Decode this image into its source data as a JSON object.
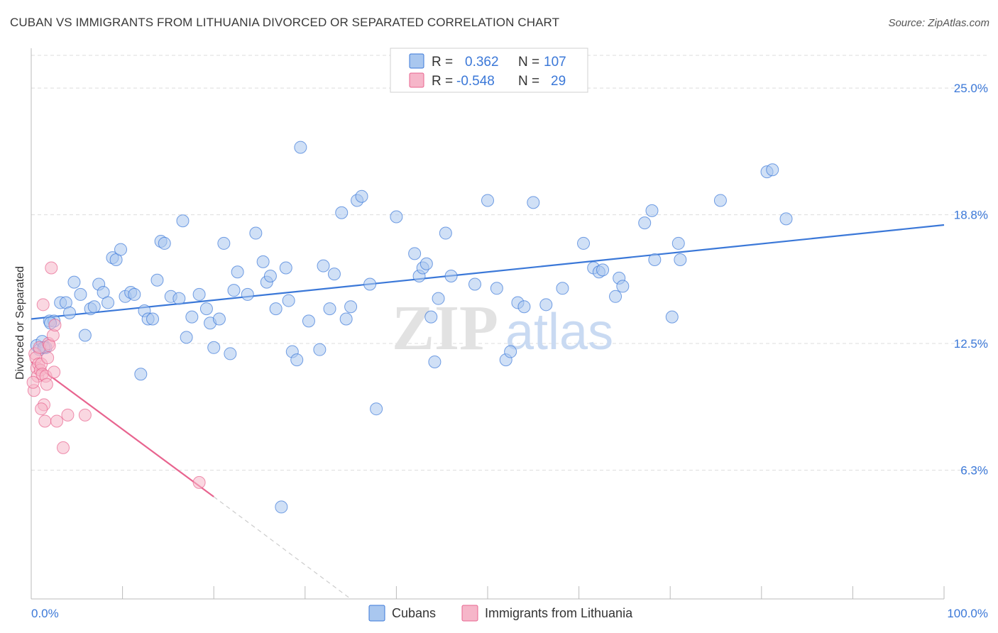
{
  "title": "CUBAN VS IMMIGRANTS FROM LITHUANIA DIVORCED OR SEPARATED CORRELATION CHART",
  "source": "Source: ZipAtlas.com",
  "watermark": {
    "zip": "ZIP",
    "atlas": "atlas"
  },
  "colors": {
    "blue": "#3b78d8",
    "blue_fill": "#a9c7ef",
    "pink": "#e8648f",
    "pink_fill": "#f6b6c9",
    "grid": "#dddddd",
    "axis": "#bbbbbb"
  },
  "legend": {
    "r_label": "R =",
    "n_label": "N =",
    "rows": [
      {
        "series": "Cubans",
        "r": "0.362",
        "n": "107",
        "color": "#3b78d8"
      },
      {
        "series": "Immigrants from Lithuania",
        "r": "-0.548",
        "n": "29",
        "color": "#e8648f"
      }
    ]
  },
  "bottom_legend": [
    "Cubans",
    "Immigrants from Lithuania"
  ],
  "chart_data": {
    "type": "scatter",
    "xlabel": "",
    "ylabel": "Divorced or Separated",
    "xlim": [
      0,
      100
    ],
    "ylim": [
      0,
      26.6
    ],
    "x_tick_labels": [
      "0.0%",
      "100.0%"
    ],
    "y_ticks": [
      6.3,
      12.5,
      18.8,
      25.0
    ],
    "y_tick_labels": [
      "6.3%",
      "12.5%",
      "18.8%",
      "25.0%"
    ],
    "grid": true,
    "series": [
      {
        "name": "Cubans",
        "trend": {
          "x": [
            0,
            100
          ],
          "y": [
            13.7,
            18.3
          ]
        },
        "points": [
          [
            0.6,
            12.4
          ],
          [
            0.9,
            12.2
          ],
          [
            1.2,
            12.6
          ],
          [
            1.6,
            12.3
          ],
          [
            2.0,
            13.6
          ],
          [
            2.5,
            13.6
          ],
          [
            3.2,
            14.5
          ],
          [
            3.8,
            14.5
          ],
          [
            4.2,
            14.0
          ],
          [
            4.7,
            15.5
          ],
          [
            5.4,
            14.9
          ],
          [
            5.9,
            12.9
          ],
          [
            6.5,
            14.2
          ],
          [
            6.9,
            14.3
          ],
          [
            7.4,
            15.4
          ],
          [
            7.9,
            15.0
          ],
          [
            8.4,
            14.5
          ],
          [
            8.9,
            16.7
          ],
          [
            9.3,
            16.6
          ],
          [
            9.8,
            17.1
          ],
          [
            10.3,
            14.8
          ],
          [
            10.9,
            15.0
          ],
          [
            11.3,
            14.9
          ],
          [
            12.0,
            11.0
          ],
          [
            12.4,
            14.1
          ],
          [
            12.8,
            13.7
          ],
          [
            13.3,
            13.7
          ],
          [
            13.8,
            15.6
          ],
          [
            14.2,
            17.5
          ],
          [
            14.6,
            17.4
          ],
          [
            15.3,
            14.8
          ],
          [
            16.2,
            14.7
          ],
          [
            16.6,
            18.5
          ],
          [
            17.0,
            12.8
          ],
          [
            17.6,
            13.8
          ],
          [
            18.4,
            14.9
          ],
          [
            19.2,
            14.2
          ],
          [
            19.6,
            13.5
          ],
          [
            20.0,
            12.3
          ],
          [
            20.6,
            13.7
          ],
          [
            21.1,
            17.4
          ],
          [
            21.8,
            12.0
          ],
          [
            22.2,
            15.1
          ],
          [
            22.6,
            16.0
          ],
          [
            23.7,
            14.9
          ],
          [
            24.6,
            17.9
          ],
          [
            25.4,
            16.5
          ],
          [
            25.8,
            15.5
          ],
          [
            26.2,
            15.8
          ],
          [
            26.8,
            14.2
          ],
          [
            27.4,
            4.5
          ],
          [
            27.9,
            16.2
          ],
          [
            28.2,
            14.6
          ],
          [
            28.6,
            12.1
          ],
          [
            29.1,
            11.7
          ],
          [
            29.5,
            22.1
          ],
          [
            30.4,
            13.6
          ],
          [
            31.6,
            12.2
          ],
          [
            32.0,
            16.3
          ],
          [
            32.7,
            14.2
          ],
          [
            33.2,
            15.9
          ],
          [
            34.0,
            18.9
          ],
          [
            34.5,
            13.7
          ],
          [
            35.0,
            14.3
          ],
          [
            35.7,
            19.5
          ],
          [
            36.2,
            19.7
          ],
          [
            37.1,
            15.4
          ],
          [
            37.8,
            9.3
          ],
          [
            40.0,
            18.7
          ],
          [
            42.0,
            16.9
          ],
          [
            42.5,
            15.8
          ],
          [
            42.9,
            16.2
          ],
          [
            43.3,
            16.4
          ],
          [
            43.8,
            13.8
          ],
          [
            44.2,
            11.6
          ],
          [
            44.6,
            14.7
          ],
          [
            45.4,
            17.9
          ],
          [
            46.0,
            15.8
          ],
          [
            48.6,
            15.4
          ],
          [
            50.0,
            19.5
          ],
          [
            51.0,
            15.2
          ],
          [
            52.0,
            11.7
          ],
          [
            52.5,
            12.1
          ],
          [
            53.3,
            14.5
          ],
          [
            54.0,
            14.3
          ],
          [
            55.0,
            19.4
          ],
          [
            56.4,
            14.4
          ],
          [
            58.2,
            15.2
          ],
          [
            60.5,
            17.4
          ],
          [
            61.6,
            16.2
          ],
          [
            62.2,
            16.0
          ],
          [
            62.6,
            16.1
          ],
          [
            64.0,
            14.8
          ],
          [
            64.4,
            15.7
          ],
          [
            64.8,
            15.3
          ],
          [
            67.2,
            18.4
          ],
          [
            68.0,
            19.0
          ],
          [
            68.3,
            16.6
          ],
          [
            70.2,
            13.8
          ],
          [
            70.9,
            17.4
          ],
          [
            71.1,
            16.6
          ],
          [
            75.5,
            19.5
          ],
          [
            80.6,
            20.9
          ],
          [
            81.2,
            21.0
          ],
          [
            82.7,
            18.6
          ],
          [
            2.1,
            13.5
          ],
          [
            1.4,
            12.3
          ]
        ]
      },
      {
        "name": "Immigrants from Lithuania",
        "trend": {
          "x": [
            0,
            20
          ],
          "y": [
            11.6,
            5.0
          ]
        },
        "trend_dashed": {
          "x": [
            20,
            35
          ],
          "y": [
            5.0,
            0.0
          ]
        },
        "points": [
          [
            0.4,
            12.0
          ],
          [
            0.5,
            11.8
          ],
          [
            0.6,
            11.3
          ],
          [
            0.7,
            10.9
          ],
          [
            0.8,
            11.5
          ],
          [
            0.9,
            12.3
          ],
          [
            1.0,
            11.2
          ],
          [
            1.1,
            11.5
          ],
          [
            1.2,
            11.0
          ],
          [
            1.3,
            14.4
          ],
          [
            1.4,
            9.5
          ],
          [
            1.5,
            8.7
          ],
          [
            1.6,
            10.9
          ],
          [
            1.7,
            10.5
          ],
          [
            1.8,
            11.8
          ],
          [
            1.9,
            12.5
          ],
          [
            2.0,
            12.4
          ],
          [
            2.2,
            16.2
          ],
          [
            2.4,
            12.9
          ],
          [
            2.6,
            13.4
          ],
          [
            2.8,
            8.7
          ],
          [
            3.5,
            7.4
          ],
          [
            4.0,
            9.0
          ],
          [
            5.9,
            9.0
          ],
          [
            18.4,
            5.7
          ],
          [
            0.3,
            10.2
          ],
          [
            0.2,
            10.6
          ],
          [
            1.1,
            9.3
          ],
          [
            2.5,
            11.1
          ]
        ]
      }
    ]
  }
}
